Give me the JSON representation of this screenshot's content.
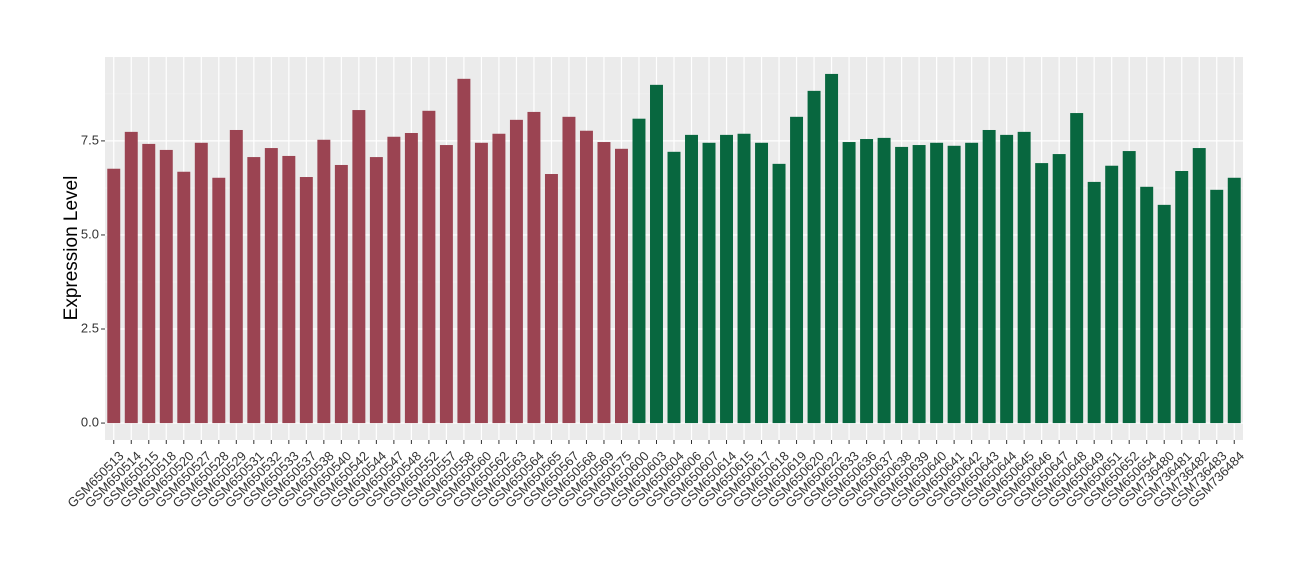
{
  "chart_data": {
    "type": "bar",
    "y_label": "Expression Level",
    "categories": [
      "GSM650513",
      "GSM650514",
      "GSM650515",
      "GSM650518",
      "GSM650520",
      "GSM650527",
      "GSM650528",
      "GSM650529",
      "GSM650531",
      "GSM650532",
      "GSM650533",
      "GSM650537",
      "GSM650538",
      "GSM650540",
      "GSM650542",
      "GSM650544",
      "GSM650547",
      "GSM650548",
      "GSM650552",
      "GSM650557",
      "GSM650558",
      "GSM650560",
      "GSM650562",
      "GSM650563",
      "GSM650564",
      "GSM650565",
      "GSM650567",
      "GSM650568",
      "GSM650569",
      "GSM650575",
      "GSM650600",
      "GSM650603",
      "GSM650604",
      "GSM650606",
      "GSM650607",
      "GSM650614",
      "GSM650615",
      "GSM650617",
      "GSM650618",
      "GSM650619",
      "GSM650620",
      "GSM650622",
      "GSM650633",
      "GSM650636",
      "GSM650637",
      "GSM650638",
      "GSM650639",
      "GSM650640",
      "GSM650641",
      "GSM650642",
      "GSM650643",
      "GSM650644",
      "GSM650645",
      "GSM650646",
      "GSM650647",
      "GSM650648",
      "GSM650649",
      "GSM650651",
      "GSM650652",
      "GSM650654",
      "GSM736480",
      "GSM736481",
      "GSM736482",
      "GSM736483",
      "GSM736484"
    ],
    "values": [
      6.76,
      7.74,
      7.42,
      7.26,
      6.68,
      7.45,
      6.52,
      7.79,
      7.07,
      7.31,
      7.1,
      6.54,
      7.53,
      6.86,
      8.32,
      7.07,
      7.61,
      7.71,
      8.3,
      7.39,
      9.15,
      7.45,
      7.69,
      8.06,
      8.27,
      6.62,
      8.14,
      7.77,
      7.47,
      7.29,
      8.09,
      8.99,
      7.21,
      7.66,
      7.45,
      7.66,
      7.69,
      7.45,
      6.89,
      8.14,
      8.83,
      9.28,
      7.47,
      7.55,
      7.58,
      7.34,
      7.39,
      7.45,
      7.37,
      7.45,
      7.79,
      7.66,
      7.74,
      6.91,
      7.15,
      8.24,
      6.41,
      6.84,
      7.23,
      6.28,
      5.8,
      6.7,
      7.31,
      6.2,
      6.52
    ],
    "colors": [
      "#9b4452",
      "#9b4452",
      "#9b4452",
      "#9b4452",
      "#9b4452",
      "#9b4452",
      "#9b4452",
      "#9b4452",
      "#9b4452",
      "#9b4452",
      "#9b4452",
      "#9b4452",
      "#9b4452",
      "#9b4452",
      "#9b4452",
      "#9b4452",
      "#9b4452",
      "#9b4452",
      "#9b4452",
      "#9b4452",
      "#9b4452",
      "#9b4452",
      "#9b4452",
      "#9b4452",
      "#9b4452",
      "#9b4452",
      "#9b4452",
      "#9b4452",
      "#9b4452",
      "#9b4452",
      "#08673f",
      "#08673f",
      "#08673f",
      "#08673f",
      "#08673f",
      "#08673f",
      "#08673f",
      "#08673f",
      "#08673f",
      "#08673f",
      "#08673f",
      "#08673f",
      "#08673f",
      "#08673f",
      "#08673f",
      "#08673f",
      "#08673f",
      "#08673f",
      "#08673f",
      "#08673f",
      "#08673f",
      "#08673f",
      "#08673f",
      "#08673f",
      "#08673f",
      "#08673f",
      "#08673f",
      "#08673f",
      "#08673f",
      "#08673f",
      "#08673f",
      "#08673f",
      "#08673f",
      "#08673f",
      "#08673f"
    ],
    "ylim": [
      -0.45,
      9.73
    ],
    "yticks": [
      {
        "value": 0,
        "label": "0.0"
      },
      2.5,
      {
        "value": 5,
        "label": "5.0"
      },
      7.5
    ],
    "grid": true
  }
}
